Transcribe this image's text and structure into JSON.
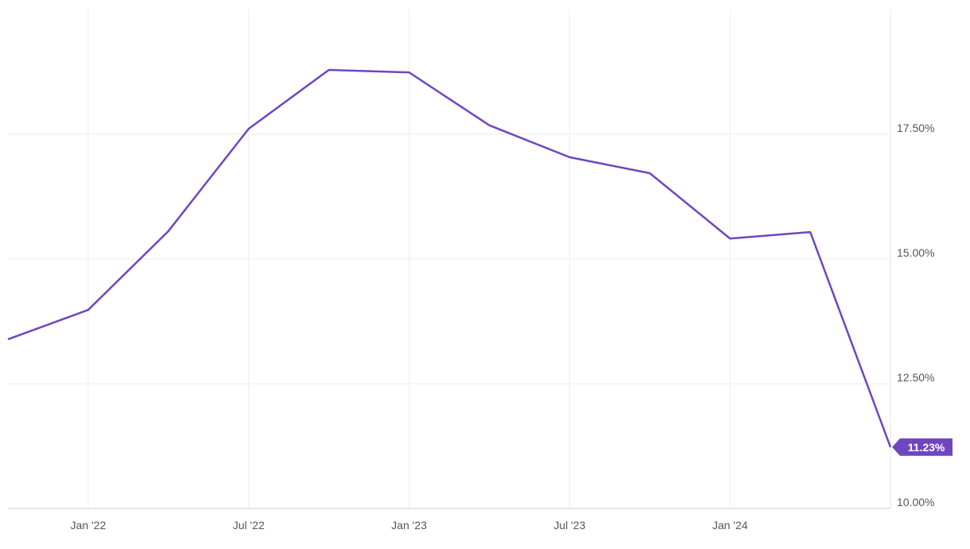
{
  "chart_data": {
    "type": "line",
    "categories": [
      null,
      "Jan '22",
      null,
      "Jul '22",
      null,
      "Jan '23",
      null,
      "Jul '23",
      null,
      "Jan '24",
      null,
      null
    ],
    "values": [
      13.39,
      13.98,
      15.56,
      17.61,
      18.79,
      18.74,
      17.68,
      17.04,
      16.72,
      15.41,
      15.54,
      11.23
    ],
    "value_labels": [
      null,
      null,
      null,
      null,
      null,
      null,
      null,
      null,
      null,
      null,
      null,
      "11.23%"
    ],
    "color": "#6f46c0",
    "ylim": [
      10,
      20
    ],
    "yticks": [
      {
        "value": 10,
        "label": "10.00%"
      },
      {
        "value": 12.5,
        "label": "12.50%"
      },
      {
        "value": 15,
        "label": "15.00%"
      },
      {
        "value": 17.5,
        "label": "17.50%"
      }
    ],
    "grid": true
  }
}
